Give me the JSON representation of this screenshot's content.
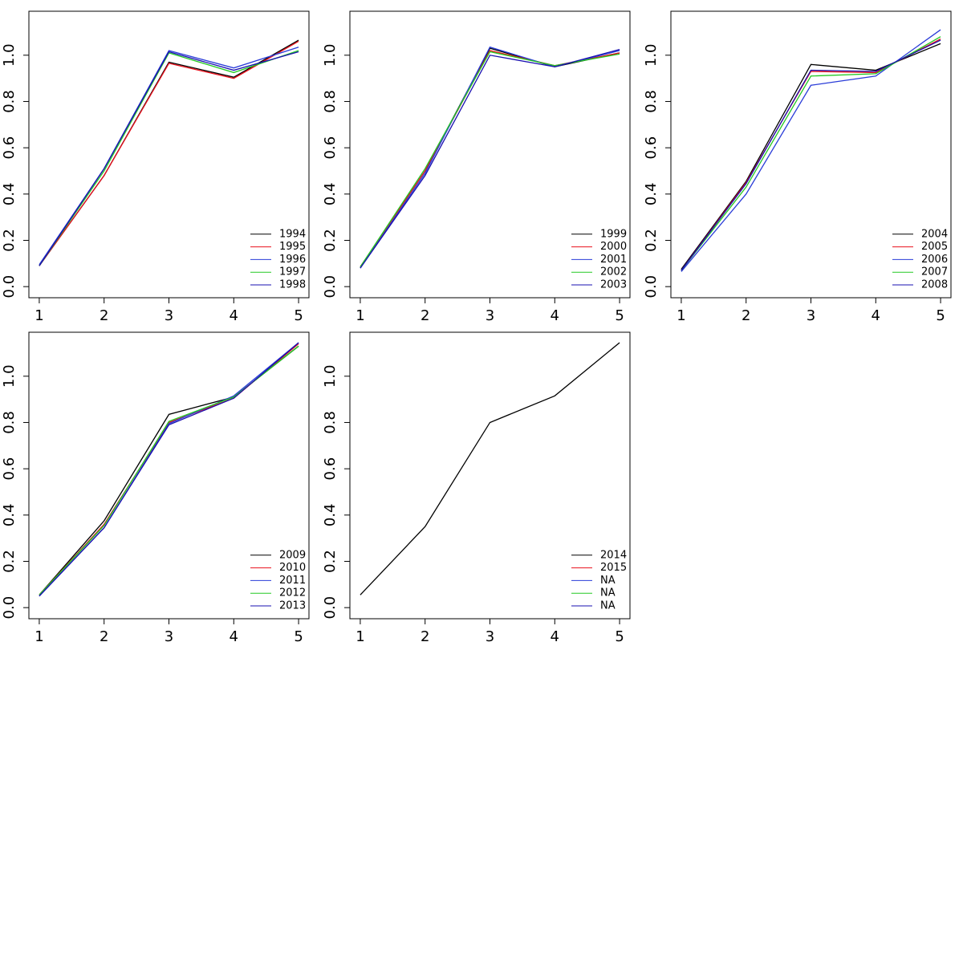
{
  "chart_data": [
    {
      "type": "line",
      "x": [
        1,
        2,
        3,
        4,
        5
      ],
      "xlim": [
        0.84,
        5.16
      ],
      "xticks": [
        1,
        2,
        3,
        4,
        5
      ],
      "ylim": [
        -0.048,
        1.19
      ],
      "yticks": [
        {
          "value": 0,
          "label": "0.0"
        },
        0.2,
        0.4,
        0.6,
        0.8,
        {
          "value": 1,
          "label": "1.0"
        }
      ],
      "legend": "bottom-right",
      "series": [
        {
          "name": "1994",
          "color": "#000000",
          "values": [
            0.09,
            0.48,
            0.97,
            0.905,
            1.065
          ]
        },
        {
          "name": "1995",
          "color": "#e8101c",
          "values": [
            0.09,
            0.48,
            0.965,
            0.9,
            1.06
          ]
        },
        {
          "name": "1996",
          "color": "#2a3cd8",
          "values": [
            0.095,
            0.51,
            1.02,
            0.945,
            1.035
          ]
        },
        {
          "name": "1997",
          "color": "#22c922",
          "values": [
            0.09,
            0.5,
            1.01,
            0.925,
            1.02
          ]
        },
        {
          "name": "1998",
          "color": "#1a10b0",
          "values": [
            0.09,
            0.51,
            1.015,
            0.935,
            1.015
          ]
        }
      ]
    },
    {
      "type": "line",
      "x": [
        1,
        2,
        3,
        4,
        5
      ],
      "xlim": [
        0.84,
        5.16
      ],
      "xticks": [
        1,
        2,
        3,
        4,
        5
      ],
      "ylim": [
        -0.048,
        1.19
      ],
      "yticks": [
        {
          "value": 0,
          "label": "0.0"
        },
        0.2,
        0.4,
        0.6,
        0.8,
        {
          "value": 1,
          "label": "1.0"
        }
      ],
      "legend": "bottom-right",
      "series": [
        {
          "name": "1999",
          "color": "#000000",
          "values": [
            0.085,
            0.5,
            1.03,
            0.95,
            1.01
          ]
        },
        {
          "name": "2000",
          "color": "#e8101c",
          "values": [
            0.085,
            0.5,
            1.02,
            0.955,
            1.01
          ]
        },
        {
          "name": "2001",
          "color": "#2a3cd8",
          "values": [
            0.08,
            0.49,
            1.035,
            0.95,
            1.02
          ]
        },
        {
          "name": "2002",
          "color": "#22c922",
          "values": [
            0.085,
            0.51,
            1.015,
            0.955,
            1.005
          ]
        },
        {
          "name": "2003",
          "color": "#1a10b0",
          "values": [
            0.08,
            0.48,
            1.0,
            0.95,
            1.025
          ]
        }
      ]
    },
    {
      "type": "line",
      "x": [
        1,
        2,
        3,
        4,
        5
      ],
      "xlim": [
        0.84,
        5.16
      ],
      "xticks": [
        1,
        2,
        3,
        4,
        5
      ],
      "ylim": [
        -0.048,
        1.19
      ],
      "yticks": [
        {
          "value": 0,
          "label": "0.0"
        },
        0.2,
        0.4,
        0.6,
        0.8,
        {
          "value": 1,
          "label": "1.0"
        }
      ],
      "legend": "bottom-right",
      "series": [
        {
          "name": "2004",
          "color": "#000000",
          "values": [
            0.075,
            0.455,
            0.96,
            0.935,
            1.05
          ]
        },
        {
          "name": "2005",
          "color": "#e8101c",
          "values": [
            0.07,
            0.45,
            0.93,
            0.925,
            1.07
          ]
        },
        {
          "name": "2006",
          "color": "#2a3cd8",
          "values": [
            0.065,
            0.4,
            0.87,
            0.91,
            1.11
          ]
        },
        {
          "name": "2007",
          "color": "#22c922",
          "values": [
            0.07,
            0.43,
            0.91,
            0.92,
            1.08
          ]
        },
        {
          "name": "2008",
          "color": "#1a10b0",
          "values": [
            0.07,
            0.445,
            0.935,
            0.93,
            1.065
          ]
        }
      ]
    },
    {
      "type": "line",
      "x": [
        1,
        2,
        3,
        4,
        5
      ],
      "xlim": [
        0.84,
        5.16
      ],
      "xticks": [
        1,
        2,
        3,
        4,
        5
      ],
      "ylim": [
        -0.048,
        1.19
      ],
      "yticks": [
        {
          "value": 0,
          "label": "0.0"
        },
        0.2,
        0.4,
        0.6,
        0.8,
        {
          "value": 1,
          "label": "1.0"
        }
      ],
      "legend": "bottom-right",
      "series": [
        {
          "name": "2009",
          "color": "#000000",
          "values": [
            0.055,
            0.375,
            0.835,
            0.91,
            1.13
          ]
        },
        {
          "name": "2010",
          "color": "#e8101c",
          "values": [
            0.055,
            0.36,
            0.8,
            0.905,
            1.14
          ]
        },
        {
          "name": "2011",
          "color": "#2a3cd8",
          "values": [
            0.05,
            0.345,
            0.795,
            0.915,
            1.145
          ]
        },
        {
          "name": "2012",
          "color": "#22c922",
          "values": [
            0.055,
            0.355,
            0.805,
            0.91,
            1.13
          ]
        },
        {
          "name": "2013",
          "color": "#1a10b0",
          "values": [
            0.05,
            0.345,
            0.79,
            0.905,
            1.145
          ]
        }
      ]
    },
    {
      "type": "line",
      "x": [
        1,
        2,
        3,
        4,
        5
      ],
      "xlim": [
        0.84,
        5.16
      ],
      "xticks": [
        1,
        2,
        3,
        4,
        5
      ],
      "ylim": [
        -0.048,
        1.19
      ],
      "yticks": [
        {
          "value": 0,
          "label": "0.0"
        },
        0.2,
        0.4,
        0.6,
        0.8,
        {
          "value": 1,
          "label": "1.0"
        }
      ],
      "legend": "bottom-right",
      "series": [
        {
          "name": "2014",
          "color": "#000000",
          "values": [
            0.055,
            0.35,
            0.8,
            0.915,
            1.145
          ]
        },
        {
          "name": "2015",
          "color": "#e8101c",
          "values": [
            null,
            null,
            null,
            null,
            null
          ]
        },
        {
          "name": "NA",
          "color": "#2a3cd8",
          "values": [
            null,
            null,
            null,
            null,
            null
          ]
        },
        {
          "name": "NA",
          "color": "#22c922",
          "values": [
            null,
            null,
            null,
            null,
            null
          ]
        },
        {
          "name": "NA",
          "color": "#1a10b0",
          "values": [
            null,
            null,
            null,
            null,
            null
          ]
        }
      ]
    }
  ]
}
